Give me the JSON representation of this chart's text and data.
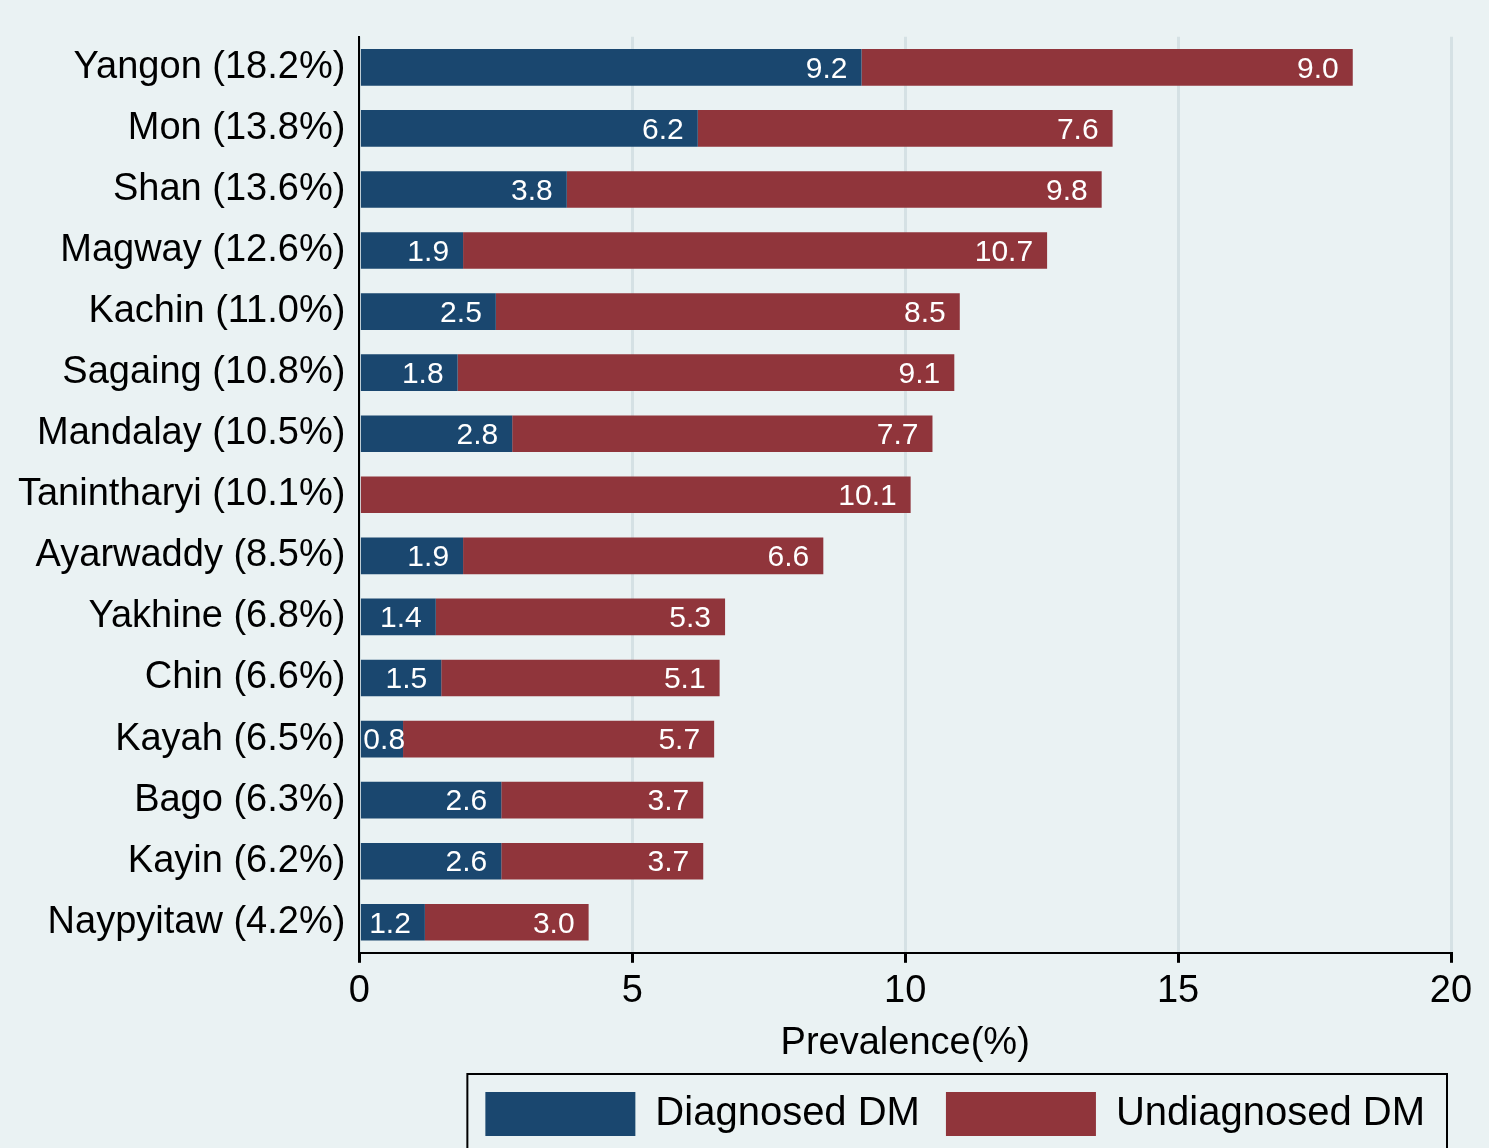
{
  "chart_data": {
    "type": "bar",
    "orientation": "horizontal",
    "stacked": true,
    "xlabel": "Prevalence(%)",
    "categories": [
      "Yangon (18.2%)",
      "Mon (13.8%)",
      "Shan (13.6%)",
      "Magway (12.6%)",
      "Kachin (11.0%)",
      "Sagaing (10.8%)",
      "Mandalay (10.5%)",
      "Tanintharyi (10.1%)",
      "Ayarwaddy (8.5%)",
      "Yakhine (6.8%)",
      "Chin (6.6%)",
      "Kayah (6.5%)",
      "Bago (6.3%)",
      "Kayin (6.2%)",
      "Naypyitaw (4.2%)"
    ],
    "series": [
      {
        "name": "Diagnosed DM",
        "color": "#1a476f",
        "values": [
          9.2,
          6.2,
          3.8,
          1.9,
          2.5,
          1.8,
          2.8,
          null,
          1.9,
          1.4,
          1.5,
          0.8,
          2.6,
          2.6,
          1.2
        ],
        "value_labels": [
          "9.2",
          "6.2",
          "3.8",
          "1.9",
          "2.5",
          "1.8",
          "2.8",
          null,
          "1.9",
          "1.4",
          "1.5",
          "0.8",
          "2.6",
          "2.6",
          "1.2"
        ]
      },
      {
        "name": "Undiagnosed DM",
        "color": "#90353b",
        "values": [
          9.0,
          7.6,
          9.8,
          10.7,
          8.5,
          9.1,
          7.7,
          10.1,
          6.6,
          5.3,
          5.1,
          5.7,
          3.7,
          3.7,
          3.0
        ],
        "value_labels": [
          "9.0",
          "7.6",
          "9.8",
          "10.7",
          "8.5",
          "9.1",
          "7.7",
          "10.1",
          "6.6",
          "5.3",
          "5.1",
          "5.7",
          "3.7",
          "3.7",
          "3.0"
        ]
      }
    ],
    "xlim": [
      0,
      20
    ],
    "xticks": [
      0,
      5,
      10,
      15,
      20
    ],
    "grid": "x",
    "legend": "bottom"
  }
}
